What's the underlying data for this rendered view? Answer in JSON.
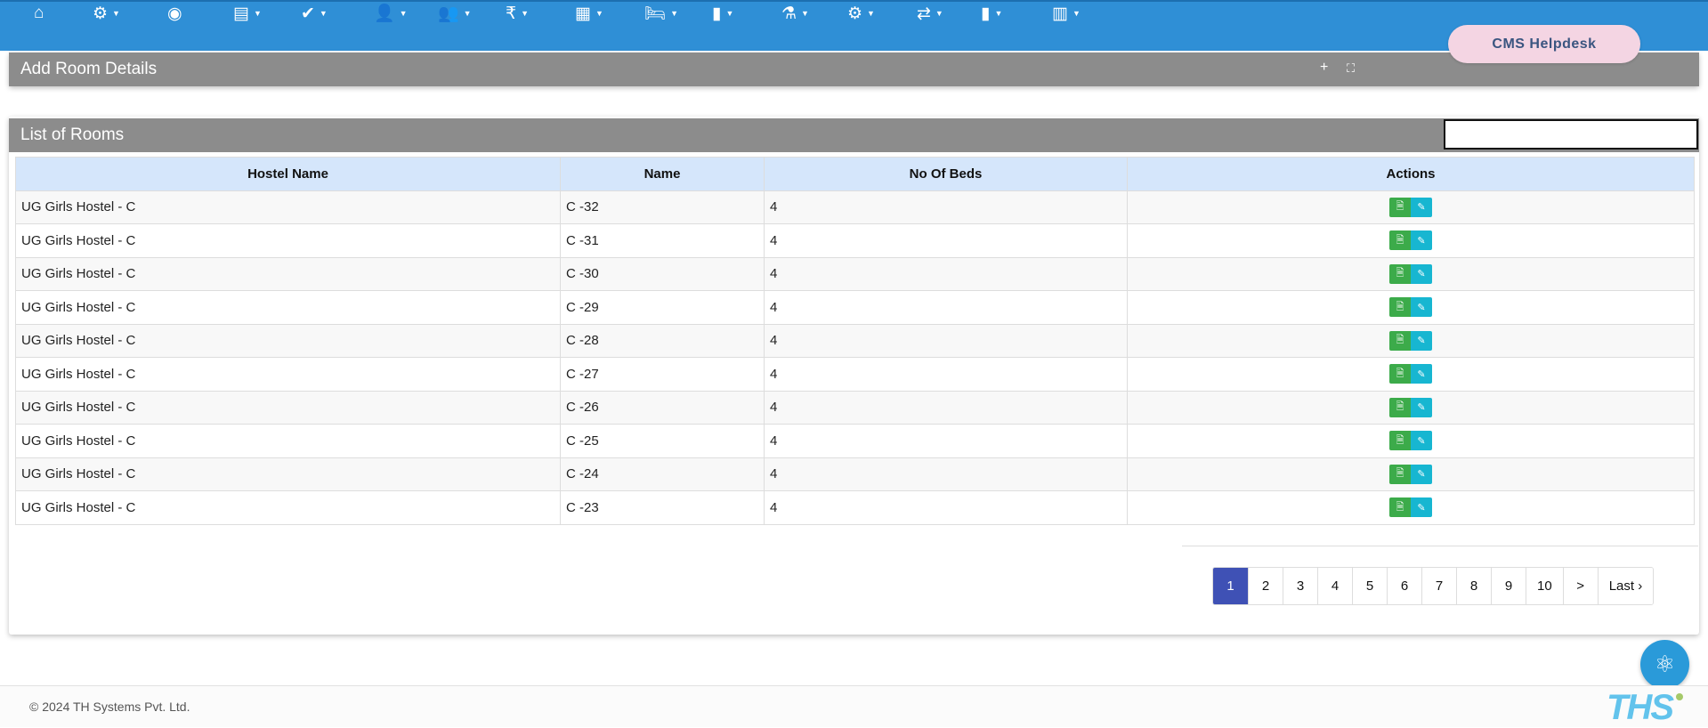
{
  "nav": {
    "items": [
      {
        "icon": "home-icon",
        "glyph": "⌂",
        "caret": false
      },
      {
        "icon": "cogs-icon",
        "glyph": "⚙",
        "caret": true
      },
      {
        "icon": "dashboard-icon",
        "glyph": "◉",
        "caret": false
      },
      {
        "icon": "document-icon",
        "glyph": "▤",
        "caret": true
      },
      {
        "icon": "check-circle-icon",
        "glyph": "✔",
        "caret": true
      },
      {
        "icon": "user-doctor-icon",
        "glyph": "👤",
        "caret": true
      },
      {
        "icon": "users-icon",
        "glyph": "👥",
        "caret": true
      },
      {
        "icon": "rupee-icon",
        "glyph": "₹",
        "caret": true
      },
      {
        "icon": "newspaper-icon",
        "glyph": "▦",
        "caret": true
      },
      {
        "icon": "bed-icon",
        "glyph": "🛏",
        "caret": true
      },
      {
        "icon": "book-icon",
        "glyph": "▮",
        "caret": true
      },
      {
        "icon": "flask-icon",
        "glyph": "⚗",
        "caret": true
      },
      {
        "icon": "gear-icon",
        "glyph": "⚙",
        "caret": true
      },
      {
        "icon": "exchange-icon",
        "glyph": "⇄",
        "caret": true
      },
      {
        "icon": "file-icon",
        "glyph": "▮",
        "caret": true
      },
      {
        "icon": "bar-chart-icon",
        "glyph": "▥",
        "caret": true
      }
    ]
  },
  "helpdesk": "CMS Helpdesk",
  "add_panel": {
    "title": "Add Room Details",
    "plus": "+",
    "expand": "⛶"
  },
  "list_panel": {
    "title": "List of Rooms",
    "search_value": ""
  },
  "table": {
    "headers": [
      "Hostel Name",
      "Name",
      "No Of Beds",
      "Actions"
    ],
    "rows": [
      [
        "UG Girls Hostel - C",
        "C -32",
        "4"
      ],
      [
        "UG Girls Hostel - C",
        "C -31",
        "4"
      ],
      [
        "UG Girls Hostel - C",
        "C -30",
        "4"
      ],
      [
        "UG Girls Hostel - C",
        "C -29",
        "4"
      ],
      [
        "UG Girls Hostel - C",
        "C -28",
        "4"
      ],
      [
        "UG Girls Hostel - C",
        "C -27",
        "4"
      ],
      [
        "UG Girls Hostel - C",
        "C -26",
        "4"
      ],
      [
        "UG Girls Hostel - C",
        "C -25",
        "4"
      ],
      [
        "UG Girls Hostel - C",
        "C -24",
        "4"
      ],
      [
        "UG Girls Hostel - C",
        "C -23",
        "4"
      ]
    ]
  },
  "pagination": {
    "pages": [
      "1",
      "2",
      "3",
      "4",
      "5",
      "6",
      "7",
      "8",
      "9",
      "10"
    ],
    "active": "1",
    "next": ">",
    "last": "Last ›"
  },
  "footer": {
    "copyright": "© 2024",
    "company": "TH Systems Pvt. Ltd.",
    "logo": "THS"
  },
  "colors": {
    "nav": "#2f8fd6",
    "panel_header": "#8c8c8c",
    "table_header": "#d5e6fb",
    "active_page": "#3f51b5",
    "view_button": "#3cab4a",
    "edit_button": "#17b6d1"
  }
}
